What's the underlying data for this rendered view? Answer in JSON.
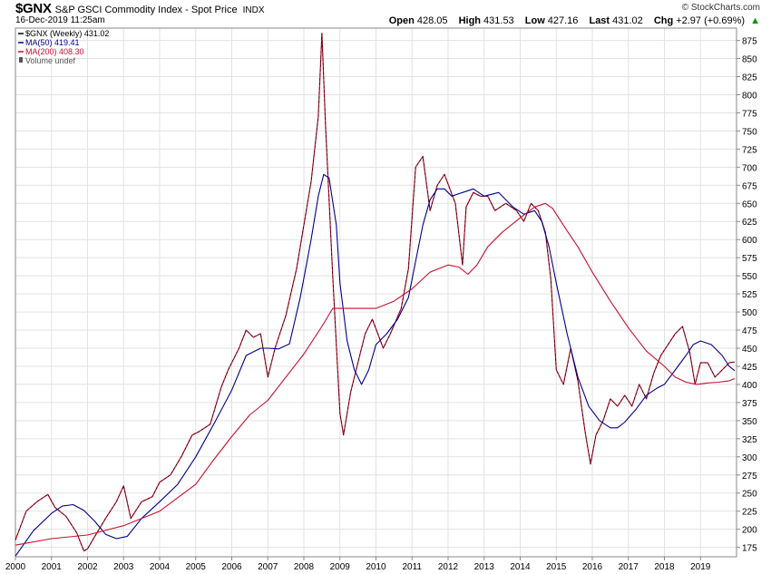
{
  "header": {
    "symbol": "$GNX",
    "name": "S&P GSCI Commodity Index - Spot Price",
    "exchange": "INDX",
    "datetime": "16-Dec-2019 11:25am",
    "brand": "© StockCharts.com",
    "open_label": "Open",
    "open": "428.05",
    "high_label": "High",
    "high": "431.53",
    "low_label": "Low",
    "low": "427.16",
    "last_label": "Last",
    "last": "431.02",
    "chg_label": "Chg",
    "chg": "+2.97 (+0.69%)",
    "chg_arrow": "▲"
  },
  "legend": [
    {
      "label": "$GNX (Weekly) 431.02",
      "color": "#000000"
    },
    {
      "label": "MA(50) 419.41",
      "color": "#00008b"
    },
    {
      "label": "MA(200) 408.30",
      "color": "#c8102e"
    },
    {
      "label": "Volume undef",
      "color": "#555555"
    }
  ],
  "chart_data": {
    "type": "line",
    "title": "$GNX (Weekly)",
    "xlabel": "",
    "ylabel": "",
    "xlim": [
      2000.0,
      2020.0
    ],
    "ylim": [
      162,
      892
    ],
    "grid": true,
    "y_ticks": [
      175,
      200,
      225,
      250,
      275,
      300,
      325,
      350,
      375,
      400,
      425,
      450,
      475,
      500,
      525,
      550,
      575,
      600,
      625,
      650,
      675,
      700,
      725,
      750,
      775,
      800,
      825,
      850,
      875
    ],
    "x_ticks": [
      "2000",
      "2001",
      "2002",
      "2003",
      "2004",
      "2005",
      "2006",
      "2007",
      "2008",
      "2009",
      "2010",
      "2011",
      "2012",
      "2013",
      "2014",
      "2015",
      "2016",
      "2017",
      "2018",
      "2019"
    ],
    "series": [
      {
        "name": "$GNX (Weekly)",
        "color": "#000000",
        "color2": "#c8102e",
        "x": [
          2000.0,
          2000.3,
          2000.6,
          2000.9,
          2001.1,
          2001.4,
          2001.7,
          2001.9,
          2002.0,
          2002.2,
          2002.5,
          2002.8,
          2003.0,
          2003.2,
          2003.5,
          2003.8,
          2004.0,
          2004.3,
          2004.6,
          2004.9,
          2005.1,
          2005.4,
          2005.7,
          2005.9,
          2006.2,
          2006.4,
          2006.6,
          2006.8,
          2007.0,
          2007.2,
          2007.5,
          2007.8,
          2008.0,
          2008.2,
          2008.4,
          2008.5,
          2008.6,
          2008.8,
          2009.0,
          2009.1,
          2009.3,
          2009.5,
          2009.7,
          2009.9,
          2010.2,
          2010.4,
          2010.7,
          2010.9,
          2011.1,
          2011.3,
          2011.5,
          2011.7,
          2011.9,
          2012.2,
          2012.4,
          2012.5,
          2012.7,
          2012.9,
          2013.1,
          2013.3,
          2013.6,
          2013.9,
          2014.1,
          2014.3,
          2014.5,
          2014.7,
          2014.85,
          2015.0,
          2015.2,
          2015.4,
          2015.6,
          2015.8,
          2015.95,
          2016.1,
          2016.3,
          2016.5,
          2016.7,
          2016.9,
          2017.1,
          2017.3,
          2017.5,
          2017.7,
          2017.9,
          2018.1,
          2018.3,
          2018.5,
          2018.7,
          2018.85,
          2019.0,
          2019.2,
          2019.4,
          2019.6,
          2019.8,
          2019.95
        ],
        "values": [
          185,
          225,
          238,
          248,
          230,
          218,
          195,
          170,
          173,
          190,
          215,
          238,
          260,
          215,
          238,
          245,
          265,
          275,
          300,
          330,
          335,
          345,
          395,
          420,
          450,
          475,
          465,
          470,
          410,
          450,
          495,
          560,
          620,
          680,
          770,
          885,
          760,
          550,
          360,
          330,
          390,
          430,
          470,
          490,
          450,
          470,
          505,
          560,
          700,
          715,
          640,
          675,
          690,
          650,
          565,
          645,
          665,
          660,
          660,
          640,
          650,
          640,
          625,
          650,
          640,
          610,
          545,
          420,
          400,
          450,
          405,
          335,
          290,
          330,
          350,
          380,
          370,
          385,
          370,
          400,
          380,
          415,
          440,
          455,
          470,
          480,
          445,
          400,
          430,
          430,
          410,
          420,
          430,
          431
        ]
      },
      {
        "name": "MA(50)",
        "color": "#00008b",
        "x": [
          2000.0,
          2000.5,
          2001.0,
          2001.3,
          2001.6,
          2001.9,
          2002.2,
          2002.5,
          2002.8,
          2003.1,
          2003.5,
          2004.0,
          2004.5,
          2005.0,
          2005.5,
          2006.0,
          2006.4,
          2006.8,
          2007.0,
          2007.3,
          2007.6,
          2007.9,
          2008.2,
          2008.4,
          2008.55,
          2008.7,
          2008.9,
          2009.0,
          2009.2,
          2009.4,
          2009.6,
          2009.8,
          2010.0,
          2010.3,
          2010.6,
          2010.9,
          2011.1,
          2011.3,
          2011.5,
          2011.7,
          2011.9,
          2012.1,
          2012.4,
          2012.7,
          2013.0,
          2013.4,
          2013.8,
          2014.1,
          2014.4,
          2014.6,
          2014.8,
          2015.0,
          2015.3,
          2015.6,
          2015.9,
          2016.2,
          2016.5,
          2016.7,
          2016.9,
          2017.2,
          2017.5,
          2017.8,
          2018.0,
          2018.3,
          2018.6,
          2018.8,
          2019.0,
          2019.3,
          2019.6,
          2019.8,
          2019.95
        ],
        "values": [
          163,
          198,
          222,
          232,
          234,
          226,
          211,
          193,
          187,
          190,
          215,
          238,
          262,
          300,
          345,
          392,
          440,
          450,
          450,
          449,
          456,
          520,
          600,
          660,
          690,
          685,
          620,
          540,
          460,
          420,
          400,
          420,
          455,
          470,
          490,
          520,
          570,
          620,
          655,
          670,
          670,
          660,
          665,
          670,
          660,
          665,
          645,
          635,
          640,
          625,
          590,
          540,
          470,
          410,
          370,
          350,
          340,
          340,
          348,
          365,
          385,
          395,
          400,
          420,
          440,
          455,
          460,
          455,
          440,
          425,
          419
        ]
      },
      {
        "name": "MA(200)",
        "color": "#c8102e",
        "x": [
          2000.0,
          2001.0,
          2002.0,
          2003.0,
          2004.0,
          2005.0,
          2005.5,
          2006.0,
          2006.5,
          2007.0,
          2007.5,
          2008.0,
          2008.5,
          2008.8,
          2009.0,
          2009.5,
          2010.0,
          2010.5,
          2011.0,
          2011.5,
          2012.0,
          2012.3,
          2012.55,
          2012.8,
          2013.1,
          2013.5,
          2014.0,
          2014.4,
          2014.7,
          2014.9,
          2015.3,
          2015.6,
          2016.0,
          2016.5,
          2017.0,
          2017.5,
          2018.0,
          2018.3,
          2018.6,
          2018.9,
          2019.2,
          2019.5,
          2019.8,
          2019.95
        ],
        "values": [
          178,
          187,
          192,
          205,
          225,
          262,
          296,
          328,
          358,
          378,
          410,
          442,
          480,
          505,
          505,
          505,
          505,
          515,
          532,
          555,
          565,
          562,
          552,
          565,
          590,
          610,
          630,
          645,
          650,
          643,
          612,
          590,
          555,
          515,
          478,
          446,
          425,
          410,
          403,
          400,
          402,
          403,
          405,
          408
        ]
      }
    ]
  }
}
